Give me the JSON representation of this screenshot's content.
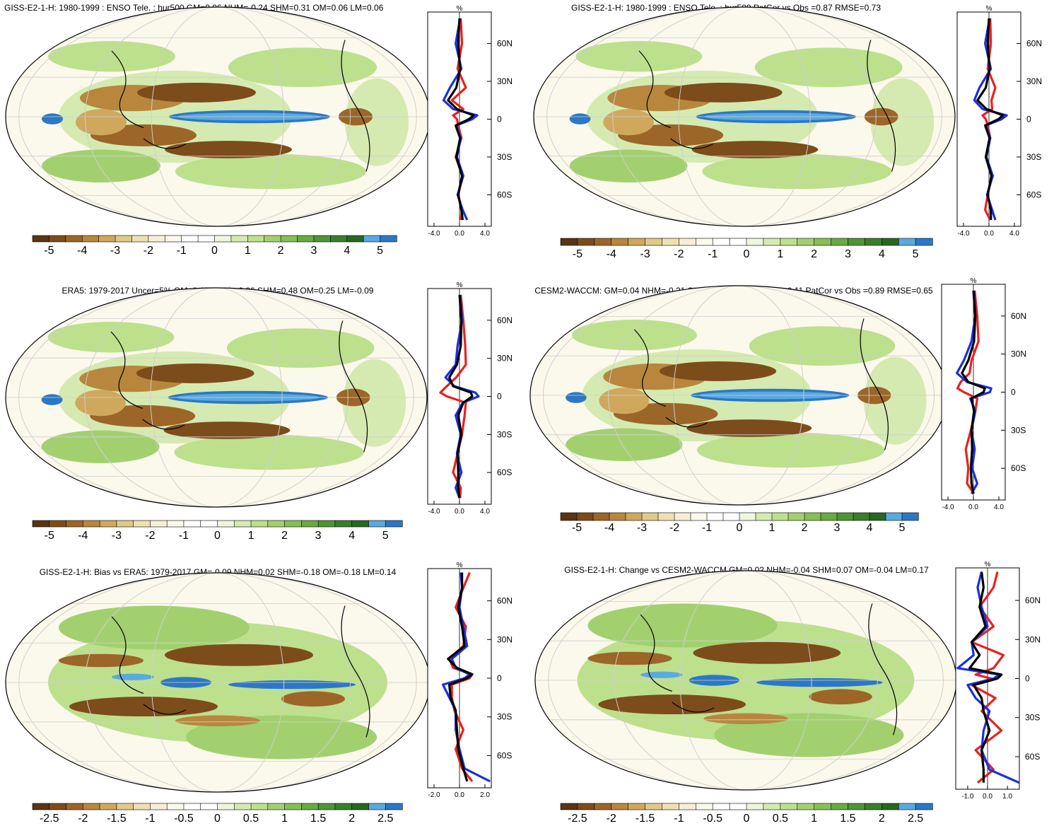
{
  "palette": {
    "blue": [
      "#5aa9df",
      "#2b78c5"
    ],
    "brown": [
      "#5a3512",
      "#7d4c1b",
      "#9b6628",
      "#b8873d",
      "#cfa85d",
      "#e1c98a",
      "#efe0b4",
      "#f6efd6"
    ],
    "green": [
      "#e2efc4",
      "#c4e19a",
      "#a5d173",
      "#86bf55",
      "#68ab41",
      "#4f9535",
      "#3a7f2a",
      "#266820"
    ],
    "land_outline": "#000000",
    "graticule": "#cfcfcf",
    "line_colors": {
      "model": "#e8211f",
      "reference": "#1a2fe0",
      "obs": "#000000"
    }
  },
  "chart_data": [
    {
      "type": "heatmap",
      "id": "p1",
      "title": "GISS-E2-1-H: 1980-1999 : ENSO Tele. : hur500 GM=0.06 NHM=-0.24 SHM=0.31 OM=0.06 LM=0.06",
      "colorbar_ticks": [
        "-5",
        "-4",
        "-3",
        "-2",
        "-1",
        "0",
        "1",
        "2",
        "3",
        "4",
        "5"
      ],
      "colorbar_range": [
        -5.5,
        5.5
      ],
      "profile": {
        "unit": "%",
        "x_ticks": [
          "-4.0",
          "0.0",
          "4.0"
        ],
        "xlim": [
          -5,
          5
        ],
        "y_ticks": [
          "60N",
          "30N",
          "0",
          "30S",
          "60S"
        ],
        "y_tick_values": [
          60,
          30,
          0,
          -30,
          -60
        ],
        "ylim": [
          -85,
          85
        ],
        "series": [
          {
            "role": "model",
            "lat": [
              80,
              60,
              40,
              25,
              15,
              8,
              3,
              0,
              -5,
              -15,
              -30,
              -45,
              -60,
              -72,
              -80
            ],
            "values": [
              0.2,
              0.4,
              -0.3,
              1.0,
              -1.2,
              0.6,
              -1.0,
              -0.4,
              -0.2,
              0.3,
              -0.6,
              0.5,
              -0.2,
              0.4,
              0.2
            ]
          },
          {
            "role": "reference",
            "lat": [
              80,
              60,
              40,
              25,
              15,
              8,
              3,
              0,
              -5,
              -15,
              -30,
              -45,
              -60,
              -72,
              -80
            ],
            "values": [
              0.1,
              -0.6,
              0.3,
              -1.5,
              -2.5,
              -1.0,
              2.8,
              2.0,
              -0.5,
              0.2,
              -0.4,
              0.6,
              -0.3,
              0.5,
              1.2
            ]
          },
          {
            "role": "obs",
            "lat": [
              80,
              60,
              40,
              25,
              15,
              8,
              3,
              0,
              -5,
              -15,
              -30,
              -45,
              -60,
              -72,
              -80
            ],
            "values": [
              0.0,
              -0.2,
              0.1,
              -0.5,
              -1.8,
              -0.4,
              2.2,
              1.5,
              -0.6,
              0.1,
              -0.5,
              0.4,
              -0.2,
              0.3,
              0.5
            ]
          }
        ]
      }
    },
    {
      "type": "heatmap",
      "id": "p2",
      "title": "GISS-E2-1-H: 1980-1999 : ENSO Tele. : hur500 PatCor vs Obs =0.87 RMSE=0.73",
      "colorbar_ticks": [
        "-5",
        "-4",
        "-3",
        "-2",
        "-1",
        "0",
        "1",
        "2",
        "3",
        "4",
        "5"
      ],
      "colorbar_range": [
        -5.5,
        5.5
      ],
      "profile": {
        "unit": "%",
        "x_ticks": [
          "-4.0",
          "0.0",
          "4.0"
        ],
        "xlim": [
          -5,
          5
        ],
        "y_ticks": [
          "60N",
          "30N",
          "0",
          "30S",
          "60S"
        ],
        "y_tick_values": [
          60,
          30,
          0,
          -30,
          -60
        ],
        "ylim": [
          -85,
          85
        ],
        "series": [
          {
            "role": "model",
            "lat": [
              80,
              60,
              40,
              25,
              15,
              8,
              3,
              0,
              -5,
              -15,
              -30,
              -45,
              -60,
              -72,
              -80
            ],
            "values": [
              0.2,
              0.3,
              -0.2,
              1.0,
              0.4,
              0.5,
              -1.0,
              -0.5,
              -0.2,
              0.2,
              -0.5,
              0.4,
              -0.2,
              -0.6,
              0.2
            ]
          },
          {
            "role": "reference",
            "lat": [
              80,
              60,
              40,
              25,
              15,
              8,
              3,
              0,
              -5,
              -15,
              -30,
              -45,
              -60,
              -72,
              -80
            ],
            "values": [
              0.1,
              -0.6,
              0.3,
              -1.5,
              -2.3,
              -1.0,
              2.8,
              2.0,
              -0.5,
              0.2,
              -0.4,
              0.6,
              -0.3,
              0.5,
              1.0
            ]
          },
          {
            "role": "obs",
            "lat": [
              80,
              60,
              40,
              25,
              15,
              8,
              3,
              0,
              -5,
              -15,
              -30,
              -45,
              -60,
              -72,
              -80
            ],
            "values": [
              0.0,
              -0.2,
              0.1,
              -0.5,
              -1.8,
              -0.4,
              2.2,
              1.5,
              -0.6,
              0.1,
              -0.5,
              0.4,
              -0.2,
              0.3,
              0.3
            ]
          }
        ]
      }
    },
    {
      "type": "heatmap",
      "id": "p3",
      "title": "ERA5: 1979-2017 Uncer=5% GM=0.15 NHM=-0.26 SHM=0.48 OM=0.25 LM=-0.09",
      "colorbar_ticks": [
        "-5",
        "-4",
        "-3",
        "-2",
        "-1",
        "0",
        "1",
        "2",
        "3",
        "4",
        "5"
      ],
      "colorbar_range": [
        -5.5,
        5.5
      ],
      "profile": {
        "unit": "%",
        "x_ticks": [
          "-4.0",
          "0.0",
          "4.0"
        ],
        "xlim": [
          -5,
          5
        ],
        "y_ticks": [
          "60N",
          "30N",
          "0",
          "30S",
          "60S"
        ],
        "y_tick_values": [
          60,
          30,
          0,
          -30,
          -60
        ],
        "ylim": [
          -85,
          85
        ],
        "series": [
          {
            "role": "model",
            "lat": [
              80,
              60,
              40,
              25,
              15,
              8,
              3,
              0,
              -5,
              -15,
              -30,
              -45,
              -60,
              -72,
              -80
            ],
            "values": [
              0.2,
              0.6,
              0.9,
              1.0,
              -0.5,
              -2.0,
              -3.0,
              -2.0,
              1.0,
              0.8,
              0.4,
              -0.3,
              -1.0,
              0.2,
              0.1
            ]
          },
          {
            "role": "reference",
            "lat": [
              80,
              60,
              40,
              25,
              15,
              8,
              3,
              0,
              -5,
              -15,
              -30,
              -45,
              -60,
              -72,
              -80
            ],
            "values": [
              0.1,
              0.4,
              -0.3,
              -0.6,
              -2.2,
              -0.8,
              2.5,
              3.0,
              0.5,
              -0.6,
              0.2,
              -0.4,
              0.3,
              -0.6,
              0.0
            ]
          },
          {
            "role": "obs",
            "lat": [
              80,
              60,
              40,
              25,
              15,
              8,
              3,
              0,
              -5,
              -15,
              -30,
              -45,
              -60,
              -72,
              -80
            ],
            "values": [
              0.0,
              0.3,
              0.2,
              -0.4,
              -1.6,
              -1.0,
              1.8,
              2.0,
              0.6,
              -0.2,
              0.3,
              -0.3,
              -0.2,
              -0.2,
              0.0
            ]
          }
        ]
      }
    },
    {
      "type": "heatmap",
      "id": "p4",
      "title": "CESM2-WACCM: GM=0.04 NHM=-0.21 SHM=0.24 OM=0.10 LM=-0.11 PatCor vs Obs =0.89 RMSE=0.65",
      "colorbar_ticks": [
        "-5",
        "-4",
        "-3",
        "-2",
        "-1",
        "0",
        "1",
        "2",
        "3",
        "4",
        "5"
      ],
      "colorbar_range": [
        -5.5,
        5.5
      ],
      "profile": {
        "unit": "%",
        "x_ticks": [
          "-4.0",
          "0.0",
          "4.0"
        ],
        "xlim": [
          -5,
          5
        ],
        "y_ticks": [
          "60N",
          "30N",
          "0",
          "30S",
          "60S"
        ],
        "y_tick_values": [
          60,
          30,
          0,
          -30,
          -60
        ],
        "ylim": [
          -85,
          85
        ],
        "series": [
          {
            "role": "model",
            "lat": [
              80,
              60,
              40,
              25,
              15,
              8,
              3,
              0,
              -5,
              -15,
              -30,
              -45,
              -60,
              -72,
              -80
            ],
            "values": [
              0.2,
              0.6,
              0.8,
              -0.3,
              -0.6,
              -2.0,
              -2.5,
              -1.5,
              0.6,
              0.3,
              -0.4,
              -1.2,
              -0.8,
              -1.0,
              0.1
            ]
          },
          {
            "role": "reference",
            "lat": [
              80,
              60,
              40,
              25,
              15,
              8,
              3,
              0,
              -5,
              -15,
              -30,
              -45,
              -60,
              -72,
              -80
            ],
            "values": [
              0.1,
              0.3,
              -0.3,
              -1.5,
              -2.6,
              -1.0,
              2.8,
              2.6,
              -0.5,
              0.3,
              -0.3,
              0.2,
              -0.2,
              0.6,
              -0.3
            ]
          },
          {
            "role": "obs",
            "lat": [
              80,
              60,
              40,
              25,
              15,
              8,
              3,
              0,
              -5,
              -15,
              -30,
              -45,
              -60,
              -72,
              -80
            ],
            "values": [
              0.0,
              0.3,
              0.1,
              -0.8,
              -1.8,
              -0.8,
              1.8,
              1.6,
              -0.3,
              0.1,
              -0.3,
              -0.2,
              -0.4,
              -0.3,
              0.0
            ]
          }
        ]
      }
    },
    {
      "type": "heatmap",
      "id": "p5",
      "title": "GISS-E2-1-H: Bias vs ERA5: 1979-2017 GM=-0.09 NHM=0.02 SHM=-0.18 OM=-0.18 LM=0.14",
      "colorbar_ticks": [
        "-2.5",
        "-2",
        "-1.5",
        "-1",
        "-0.5",
        "0",
        "0.5",
        "1",
        "1.5",
        "2",
        "2.5"
      ],
      "colorbar_range": [
        -2.75,
        2.75
      ],
      "profile": {
        "unit": "%",
        "x_ticks": [
          "-2.0",
          "0.0",
          "2.0"
        ],
        "xlim": [
          -2.5,
          2.5
        ],
        "y_ticks": [
          "60N",
          "30N",
          "0",
          "30S",
          "60S"
        ],
        "y_tick_values": [
          60,
          30,
          0,
          -30,
          -60
        ],
        "ylim": [
          -85,
          85
        ],
        "series": [
          {
            "role": "model",
            "lat": [
              82,
              70,
              55,
              40,
              25,
              15,
              8,
              3,
              0,
              -5,
              -15,
              -25,
              -40,
              -55,
              -70,
              -80
            ],
            "values": [
              0.8,
              0.3,
              -0.3,
              0.5,
              0.3,
              -0.8,
              -0.5,
              1.0,
              0.8,
              -0.6,
              -0.6,
              -0.4,
              0.3,
              -0.3,
              0.2,
              1.0
            ]
          },
          {
            "role": "reference",
            "lat": [
              82,
              70,
              55,
              40,
              25,
              15,
              8,
              3,
              0,
              -5,
              -15,
              -25,
              -40,
              -55,
              -70,
              -80
            ],
            "values": [
              0.1,
              0.2,
              0.0,
              0.3,
              0.6,
              -0.6,
              -0.3,
              0.8,
              0.4,
              -1.3,
              -0.8,
              -0.3,
              -0.3,
              0.0,
              0.4,
              2.4
            ]
          },
          {
            "role": "obs",
            "lat": [
              82,
              70,
              55,
              40,
              25,
              15,
              8,
              3,
              0,
              -5,
              -15,
              -25,
              -40,
              -55,
              -70,
              -80
            ],
            "values": [
              0.2,
              0.2,
              -0.1,
              0.2,
              0.4,
              -0.9,
              -0.2,
              1.0,
              0.6,
              -0.8,
              -0.7,
              -0.3,
              -0.2,
              -0.1,
              0.3,
              0.6
            ]
          }
        ]
      }
    },
    {
      "type": "heatmap",
      "id": "p6",
      "title": "GISS-E2-1-H: Change vs CESM2-WACCM GM=0.02 NHM=-0.04 SHM=0.07 OM=-0.04 LM=0.17",
      "colorbar_ticks": [
        "-2.5",
        "-2",
        "-1.5",
        "-1",
        "-0.5",
        "0",
        "0.5",
        "1",
        "1.5",
        "2",
        "2.5"
      ],
      "colorbar_range": [
        -2.75,
        2.75
      ],
      "profile": {
        "unit": "%",
        "x_ticks": [
          "-1.0",
          "0.0",
          "1.0"
        ],
        "xlim": [
          -1.6,
          1.6
        ],
        "y_ticks": [
          "60N",
          "30N",
          "0",
          "30S",
          "60S"
        ],
        "y_tick_values": [
          60,
          30,
          0,
          -30,
          -60
        ],
        "ylim": [
          -85,
          85
        ],
        "series": [
          {
            "role": "model",
            "lat": [
              82,
              70,
              55,
              40,
              28,
              18,
              8,
              3,
              0,
              -5,
              -15,
              -25,
              -40,
              -55,
              -70,
              -80
            ],
            "values": [
              0.5,
              0.3,
              -0.4,
              0.3,
              -0.8,
              0.8,
              0.3,
              -0.6,
              0.2,
              -0.8,
              0.4,
              -0.3,
              0.7,
              -0.6,
              0.3,
              -0.5
            ]
          },
          {
            "role": "reference",
            "lat": [
              82,
              70,
              55,
              40,
              28,
              18,
              8,
              3,
              0,
              -5,
              -15,
              -25,
              -40,
              -55,
              -70,
              -80
            ],
            "values": [
              -0.3,
              -0.5,
              -0.3,
              0.0,
              -0.8,
              -0.7,
              -1.5,
              0.6,
              0.3,
              -1.0,
              -0.6,
              0.1,
              -0.2,
              -0.3,
              0.1,
              1.6
            ]
          },
          {
            "role": "obs",
            "lat": [
              82,
              70,
              55,
              40,
              28,
              18,
              8,
              3,
              0,
              -5,
              -15,
              -25,
              -40,
              -55,
              -70,
              -80
            ],
            "values": [
              -0.3,
              -0.2,
              -0.4,
              -0.1,
              -0.8,
              -0.4,
              -0.9,
              0.7,
              0.5,
              -0.7,
              -0.3,
              -0.2,
              0.1,
              -0.3,
              -0.2,
              -0.2
            ]
          }
        ]
      }
    }
  ]
}
